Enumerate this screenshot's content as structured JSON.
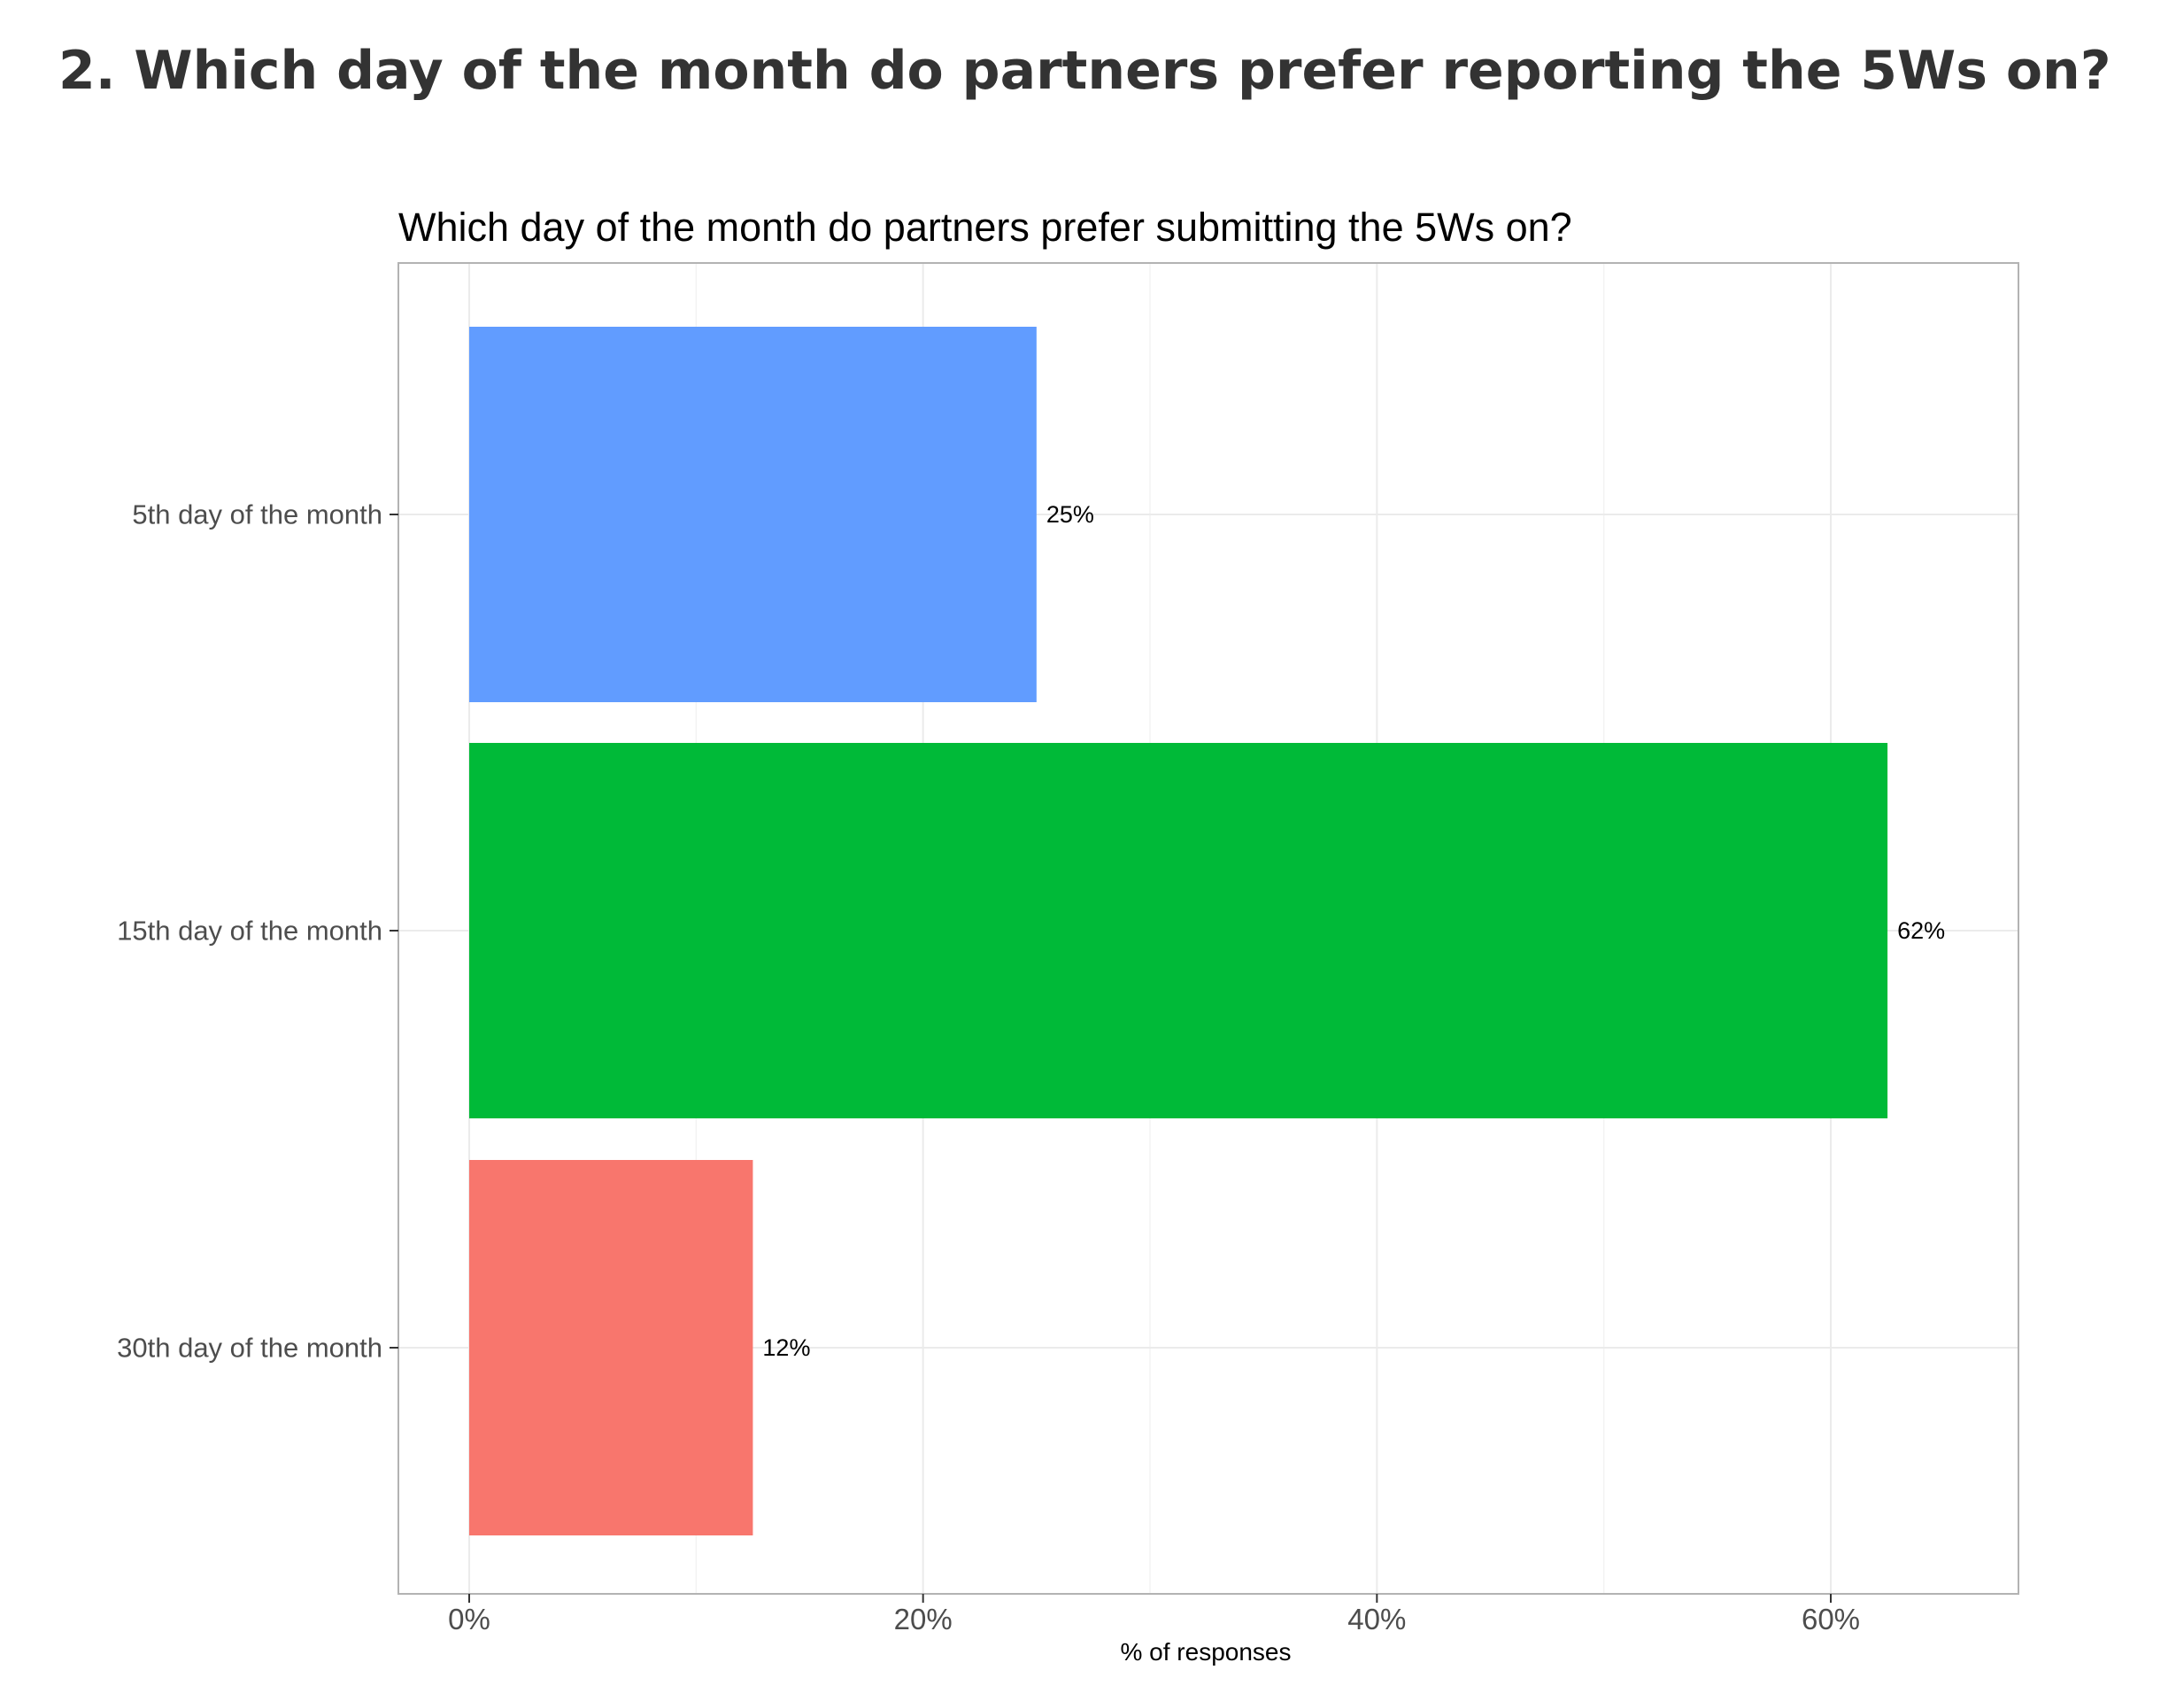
{
  "page": {
    "heading": "2. Which day of the month do partners prefer reporting the 5Ws on?"
  },
  "chart_data": {
    "type": "bar",
    "orientation": "horizontal",
    "title": "Which day of the month do partners prefer submitting the 5Ws on?",
    "xlabel": "% of responses",
    "ylabel": "",
    "xlim": [
      0,
      68
    ],
    "x_ticks": [
      0,
      20,
      40,
      60
    ],
    "x_tick_labels": [
      "0%",
      "20%",
      "40%",
      "60%"
    ],
    "grid": true,
    "legend": "none",
    "categories": [
      "5th day of the month",
      "15th day of the month",
      "30th day of the month"
    ],
    "values": [
      25,
      62.5,
      12.5
    ],
    "data_labels": [
      "25%",
      "62%",
      "12%"
    ],
    "colors": [
      "#619CFF",
      "#00BA38",
      "#F8766D"
    ]
  }
}
